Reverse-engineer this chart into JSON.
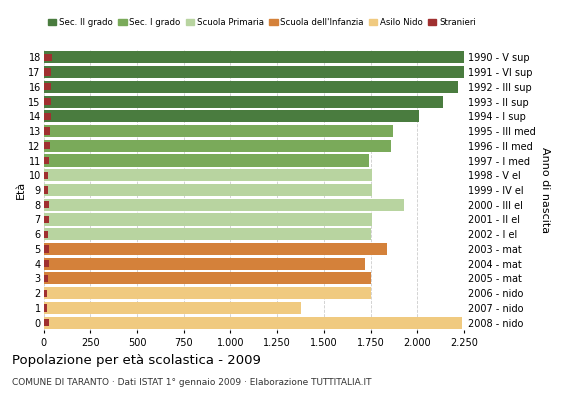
{
  "ages": [
    18,
    17,
    16,
    15,
    14,
    13,
    12,
    11,
    10,
    9,
    8,
    7,
    6,
    5,
    4,
    3,
    2,
    1,
    0
  ],
  "years": [
    "1990 - V sup",
    "1991 - VI sup",
    "1992 - III sup",
    "1993 - II sup",
    "1994 - I sup",
    "1995 - III med",
    "1996 - II med",
    "1997 - I med",
    "1998 - V el",
    "1999 - IV el",
    "2000 - III el",
    "2001 - II el",
    "2002 - I el",
    "2003 - mat",
    "2004 - mat",
    "2005 - mat",
    "2006 - nido",
    "2007 - nido",
    "2008 - nido"
  ],
  "values": [
    2260,
    2250,
    2220,
    2140,
    2010,
    1870,
    1860,
    1740,
    1760,
    1760,
    1930,
    1760,
    1750,
    1840,
    1720,
    1750,
    1750,
    1380,
    2240
  ],
  "stranieri_vals": [
    45,
    40,
    40,
    42,
    38,
    35,
    34,
    30,
    25,
    25,
    30,
    28,
    26,
    30,
    28,
    26,
    20,
    18,
    30
  ],
  "bar_colors": [
    "#4a7c3f",
    "#4a7c3f",
    "#4a7c3f",
    "#4a7c3f",
    "#4a7c3f",
    "#7aaa5a",
    "#7aaa5a",
    "#7aaa5a",
    "#b8d4a0",
    "#b8d4a0",
    "#b8d4a0",
    "#b8d4a0",
    "#b8d4a0",
    "#d4813a",
    "#d4813a",
    "#d4813a",
    "#f0ca80",
    "#f0ca80",
    "#f0ca80"
  ],
  "legend_labels": [
    "Sec. II grado",
    "Sec. I grado",
    "Scuola Primaria",
    "Scuola dell'Infanzia",
    "Asilo Nido",
    "Stranieri"
  ],
  "legend_colors": [
    "#4a7c3f",
    "#7aaa5a",
    "#b8d4a0",
    "#d4813a",
    "#f0ca80",
    "#a03030"
  ],
  "ylabel_left": "Età",
  "ylabel_right": "Anno di nascita",
  "title": "Popolazione per età scolastica - 2009",
  "subtitle": "COMUNE DI TARANTO · Dati ISTAT 1° gennaio 2009 · Elaborazione TUTTITALIA.IT",
  "xlim": [
    0,
    2250
  ],
  "xticks": [
    0,
    250,
    500,
    750,
    1000,
    1250,
    1500,
    1750,
    2000,
    2250
  ],
  "stranieri_color": "#a03030",
  "bg_color": "#ffffff",
  "grid_color": "#cccccc",
  "bar_height": 0.82
}
